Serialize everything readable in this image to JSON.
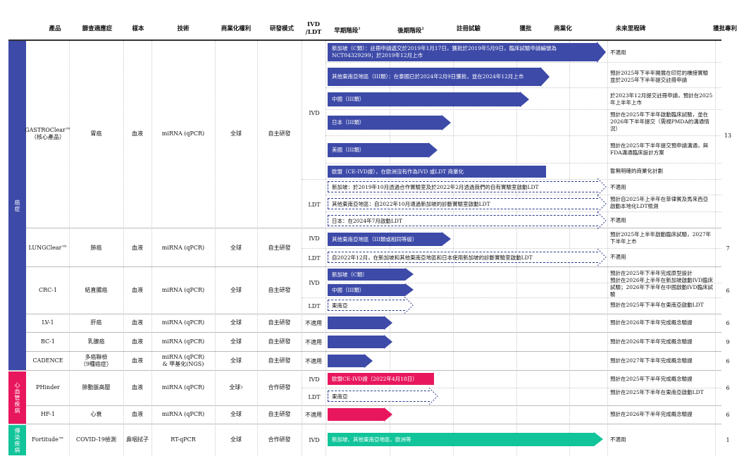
{
  "headers": {
    "product": "產品",
    "indication": "篩查適應症",
    "sample": "樣本",
    "technology": "技術",
    "rights": "商業化權利",
    "model": "研發模式",
    "type": "IVD\n/LDT",
    "early": "早期階段",
    "early_sup": "1",
    "late": "後期階段",
    "late_sup": "2",
    "registration": "註冊試驗",
    "approval": "獲批",
    "commercial": "商業化",
    "milestone": "未來里程碑",
    "patents": "獲批專利"
  },
  "categories": {
    "cancer": "癌症",
    "cardio": "心血管疾病",
    "infectious": "傳染疾病"
  },
  "colors": {
    "cancer": "#3d4aa8",
    "cardio": "#e8175d",
    "infectious": "#12c49a"
  },
  "products": {
    "gastro": {
      "name": "GASTROClear™",
      "sub": "（核心產品）",
      "indication": "胃癌",
      "sample": "血液",
      "tech": "miRNA (qPCR)",
      "rights": "全球",
      "model": "自主研發",
      "patents": "13"
    },
    "lung": {
      "name": "LUNGClear™",
      "indication": "肺癌",
      "sample": "血液",
      "tech": "miRNA (qPCR)",
      "rights": "全球",
      "model": "自主研發",
      "patents": "7"
    },
    "crc": {
      "name": "CRC-1",
      "indication": "結直腸癌",
      "sample": "血液",
      "tech": "miRNA (qPCR)",
      "rights": "全球",
      "model": "自主研發",
      "patents": "6"
    },
    "lv": {
      "name": "LV-1",
      "indication": "肝癌",
      "sample": "血液",
      "tech": "miRNA (qPCR)",
      "rights": "全球",
      "model": "自主研發",
      "patents": "6",
      "type": "不適用"
    },
    "bc": {
      "name": "BC-1",
      "indication": "乳腺癌",
      "sample": "血液",
      "tech": "miRNA (qPCR)",
      "rights": "全球",
      "model": "自主研發",
      "patents": "9",
      "type": "不適用"
    },
    "cadence": {
      "name": "CADENCE",
      "indication": "多癌聯檢\n（9種癌症）",
      "sample": "血液",
      "tech": "miRNA (qPCR)\n& 甲基化(NGS)",
      "rights": "全球",
      "model": "自主研發",
      "patents": "6",
      "type": "不適用"
    },
    "phinder": {
      "name": "PHinder",
      "indication": "肺動脈高壓",
      "sample": "血液",
      "tech": "miRNA (qPCR)",
      "rights": "全球",
      "rights_sup": "3",
      "model": "合作研發",
      "patents": "6"
    },
    "hf": {
      "name": "HF-1",
      "indication": "心衰",
      "sample": "血液",
      "tech": "miRNA (qPCR)",
      "rights": "全球",
      "model": "自主研發",
      "patents": "6",
      "type": "不適用"
    },
    "fortitude": {
      "name": "Fortitude™",
      "indication": "COVID-19檢測",
      "sample": "鼻咽拭子",
      "tech": "RT-qPCR",
      "rights": "全球",
      "model": "合作研發",
      "patents": "1",
      "type": "IVD"
    }
  },
  "type_labels": {
    "ivd": "IVD",
    "ldt": "LDT"
  },
  "bars": {
    "g1": "新加坡（C類）：註冊申請遞交於2019年1月17日，獲批於2019年5月9日，臨床試驗申請編號為NCT04329299；於2019年12月上市",
    "g2": "其他東南亞地區（III類）：在泰國已於2024年2月9日獲批，並在2024年12月上市",
    "g3": "中國（III類）",
    "g4": "日本（III類）",
    "g5": "美國（III類）",
    "g6": "歐盟（CE-IVD證），在歐洲沒有作為IVD 或LDT 商業化",
    "g7": "新加坡：於2019年10月透過合作實驗室及於2022年2月透過我們的自有實驗室啟動LDT",
    "g8": "其他東南亞地區：自2022年10月通過新加坡的診斷實驗室啟動LDT",
    "g9": "日本：在2024年7月啟動LDT",
    "l1": "其他東南亞地區（III類或相同等級）",
    "l2": "自2022年12月，在新加坡和其他東南亞地區和日本使用新加坡的診斷實驗室啟動LDT",
    "c1": "新加坡（C類）",
    "c2": "中國（III類）",
    "c3": "東南亞",
    "p1": "歐盟CE-IVD證（2022年4月18日）",
    "p2": "東南亞",
    "f1": "新加坡、其他東南亞地區、歐洲等"
  },
  "milestones": {
    "g1": "不適用",
    "g2": "預計2025年下半年開展在印尼的橋接實驗並於2025年下半年提交註冊申請",
    "g3": "於2023年12月提交註冊申請，預計在2025年上半年上市",
    "g4": "預計在2025年下半年啟動臨床試驗，並在2026年下半年提交（需視PMDA的溝通情況）",
    "g5": "預計在2025年下半年提交預申請溝通，與FDA溝通臨床設計方案",
    "g6": "暫無明確的商業化計劃",
    "g7": "不適用",
    "g8": "預計自2025年上半年在菲律賓及馬來西亞啟動本地化LDT檢測",
    "g9": "不適用",
    "l1": "預計2025年上半年啟動臨床試驗，2027年下半年上市",
    "l2": "不適用",
    "c1": "預計在2025年下半年完成原型設計",
    "c2": "預計在2026年上半年在新加坡啟動IVD臨床試驗；2026年下半年在中國啟動IVD臨床試驗",
    "c3": "預計在2025年下半年在東南亞啟動LDT",
    "lv": "預計在2026年下半年完成概念驗證",
    "bc": "預計在2026年下半年完成概念驗證",
    "cad": "預計在2027年下半年完成概念驗證",
    "p1": "預計在2025年下半年完成概念驗證",
    "p2": "預計在2025年下半年在東南亞啟動LDT",
    "hf": "預計在2026年下半年完成概念驗證",
    "f1": "不適用"
  }
}
